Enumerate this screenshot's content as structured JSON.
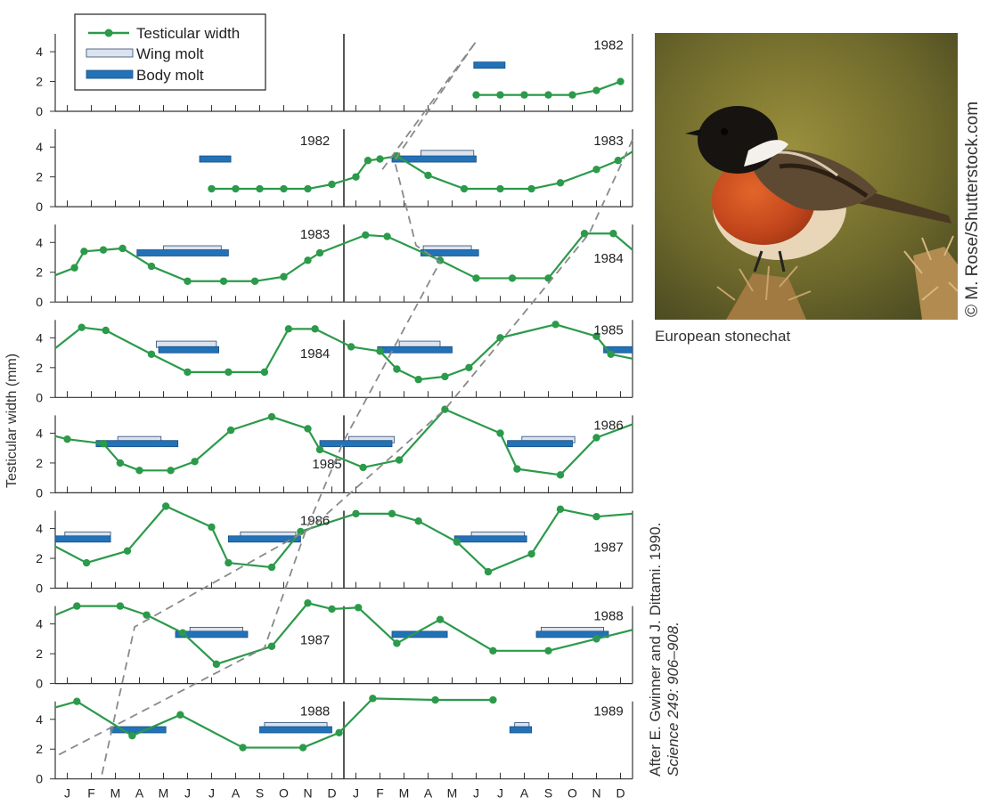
{
  "figure": {
    "ylabel": "Testicular width (mm)",
    "photo_caption": "European stonechat",
    "photo_credit": "© M. Rose/Shutterstock.com",
    "citation_line1": "After E. Gwinner and J. Dittami. 1990.",
    "citation_line2": "Science 249: 906–908."
  },
  "colors": {
    "testis_line": "#2b9a4a",
    "body_molt": "#2272b8",
    "wing_molt": "#dce3ee",
    "dashed": "#8a8a8a"
  },
  "chart_data": {
    "type": "line",
    "ylim": [
      0,
      5.2
    ],
    "yticks": [
      0,
      2,
      4
    ],
    "months": [
      "J",
      "F",
      "M",
      "A",
      "M",
      "J",
      "J",
      "A",
      "S",
      "O",
      "N",
      "D",
      "J",
      "F",
      "M",
      "A",
      "M",
      "J",
      "J",
      "A",
      "S",
      "O",
      "N",
      "D"
    ],
    "legend": {
      "testis": "Testicular width",
      "wing": "Wing molt",
      "body": "Body molt"
    },
    "rows": [
      {
        "year_labels": [
          {
            "text": "1982",
            "m": 23.0,
            "y": 4.5
          }
        ],
        "testis": [
          [
            17.5,
            1.1
          ],
          [
            18.5,
            1.1
          ],
          [
            19.5,
            1.1
          ],
          [
            20.5,
            1.1
          ],
          [
            21.5,
            1.1
          ],
          [
            22.5,
            1.4
          ],
          [
            23.5,
            2.0
          ]
        ],
        "body_molt": [
          [
            17.4,
            18.7,
            3.1
          ]
        ],
        "wing_molt": []
      },
      {
        "year_labels": [
          {
            "text": "1982",
            "m": 10.8,
            "y": 4.5
          },
          {
            "text": "1983",
            "m": 23.0,
            "y": 4.5
          }
        ],
        "testis": [
          [
            6.5,
            1.2
          ],
          [
            7.5,
            1.2
          ],
          [
            8.5,
            1.2
          ],
          [
            9.5,
            1.2
          ],
          [
            10.5,
            1.2
          ],
          [
            11.5,
            1.5
          ],
          [
            12.5,
            2.0
          ],
          [
            13.0,
            3.1
          ],
          [
            13.5,
            3.2
          ],
          [
            14.2,
            3.4
          ],
          [
            15.5,
            2.1
          ],
          [
            17.0,
            1.2
          ],
          [
            18.5,
            1.2
          ],
          [
            19.8,
            1.2
          ],
          [
            21.0,
            1.6
          ],
          [
            22.5,
            2.5
          ],
          [
            23.4,
            3.1
          ],
          [
            24.0,
            3.7
          ]
        ],
        "body_molt": [
          [
            6.0,
            7.3,
            3.2
          ],
          [
            14.0,
            17.5,
            3.2
          ]
        ],
        "wing_molt": [
          [
            15.2,
            17.4
          ]
        ]
      },
      {
        "year_labels": [
          {
            "text": "1983",
            "m": 10.8,
            "y": 4.6
          },
          {
            "text": "1984",
            "m": 23.0,
            "y": 3.0
          }
        ],
        "testis": [
          [
            0.0,
            1.8
          ],
          [
            0.8,
            2.3
          ],
          [
            1.2,
            3.4
          ],
          [
            2.0,
            3.5
          ],
          [
            2.8,
            3.6
          ],
          [
            4.0,
            2.4
          ],
          [
            5.5,
            1.4
          ],
          [
            7.0,
            1.4
          ],
          [
            8.3,
            1.4
          ],
          [
            9.5,
            1.7
          ],
          [
            10.5,
            2.8
          ],
          [
            11.0,
            3.3
          ],
          [
            12.9,
            4.5
          ],
          [
            13.8,
            4.4
          ],
          [
            16.0,
            2.8
          ],
          [
            17.5,
            1.6
          ],
          [
            19.0,
            1.6
          ],
          [
            20.5,
            1.6
          ],
          [
            22.0,
            4.6
          ],
          [
            23.2,
            4.6
          ],
          [
            24.0,
            3.5
          ]
        ],
        "body_molt": [
          [
            3.4,
            7.2,
            3.3
          ],
          [
            15.2,
            17.6,
            3.3
          ]
        ],
        "wing_molt": [
          [
            4.5,
            6.9
          ],
          [
            15.3,
            17.3
          ]
        ]
      },
      {
        "year_labels": [
          {
            "text": "1984",
            "m": 10.8,
            "y": 3.0
          },
          {
            "text": "1985",
            "m": 23.0,
            "y": 4.6
          }
        ],
        "testis": [
          [
            0.0,
            3.3
          ],
          [
            1.1,
            4.7
          ],
          [
            2.1,
            4.5
          ],
          [
            4.0,
            2.9
          ],
          [
            5.5,
            1.7
          ],
          [
            7.2,
            1.7
          ],
          [
            8.7,
            1.7
          ],
          [
            9.7,
            4.6
          ],
          [
            10.8,
            4.6
          ],
          [
            12.3,
            3.4
          ],
          [
            13.5,
            3.1
          ],
          [
            14.2,
            1.9
          ],
          [
            15.1,
            1.2
          ],
          [
            16.2,
            1.4
          ],
          [
            17.2,
            2.0
          ],
          [
            18.5,
            4.0
          ],
          [
            20.8,
            4.9
          ],
          [
            22.5,
            4.1
          ],
          [
            23.1,
            2.9
          ],
          [
            24.0,
            2.6
          ]
        ],
        "body_molt": [
          [
            4.3,
            6.8,
            3.2
          ],
          [
            13.4,
            16.5,
            3.2
          ],
          [
            22.8,
            24.0,
            3.2
          ]
        ],
        "wing_molt": [
          [
            4.2,
            6.7
          ],
          [
            14.3,
            16.0
          ]
        ]
      },
      {
        "year_labels": [
          {
            "text": "1985",
            "m": 11.3,
            "y": 2.0
          },
          {
            "text": "1986",
            "m": 23.0,
            "y": 4.6
          }
        ],
        "testis": [
          [
            0.0,
            3.8
          ],
          [
            0.5,
            3.6
          ],
          [
            2.0,
            3.3
          ],
          [
            2.7,
            2.0
          ],
          [
            3.5,
            1.5
          ],
          [
            4.8,
            1.5
          ],
          [
            5.8,
            2.1
          ],
          [
            7.3,
            4.2
          ],
          [
            9.0,
            5.1
          ],
          [
            10.5,
            4.3
          ],
          [
            11.0,
            2.9
          ],
          [
            12.8,
            1.7
          ],
          [
            14.3,
            2.2
          ],
          [
            16.2,
            5.6
          ],
          [
            18.5,
            4.0
          ],
          [
            19.2,
            1.6
          ],
          [
            21.0,
            1.2
          ],
          [
            22.5,
            3.7
          ],
          [
            24.0,
            4.6
          ]
        ],
        "body_molt": [
          [
            1.7,
            5.1,
            3.3
          ],
          [
            11.0,
            14.0,
            3.3
          ],
          [
            18.8,
            21.5,
            3.3
          ]
        ],
        "wing_molt": [
          [
            2.6,
            4.4
          ],
          [
            12.2,
            14.1
          ],
          [
            19.4,
            21.6
          ]
        ]
      },
      {
        "year_labels": [
          {
            "text": "1986",
            "m": 10.8,
            "y": 4.6
          },
          {
            "text": "1987",
            "m": 23.0,
            "y": 2.8
          }
        ],
        "testis": [
          [
            0.0,
            2.8
          ],
          [
            1.3,
            1.7
          ],
          [
            3.0,
            2.5
          ],
          [
            4.6,
            5.5
          ],
          [
            6.5,
            4.1
          ],
          [
            7.2,
            1.7
          ],
          [
            9.0,
            1.4
          ],
          [
            10.2,
            3.8
          ],
          [
            12.5,
            5.0
          ],
          [
            14.0,
            5.0
          ],
          [
            15.1,
            4.5
          ],
          [
            16.7,
            3.1
          ],
          [
            18.0,
            1.1
          ],
          [
            19.8,
            2.3
          ],
          [
            21.0,
            5.3
          ],
          [
            22.5,
            4.8
          ],
          [
            24.0,
            5.0
          ]
        ],
        "body_molt": [
          [
            0.0,
            2.3,
            3.3
          ],
          [
            7.2,
            10.2,
            3.3
          ],
          [
            16.6,
            19.6,
            3.3
          ]
        ],
        "wing_molt": [
          [
            0.4,
            2.3
          ],
          [
            7.7,
            10.0
          ],
          [
            17.3,
            19.5
          ]
        ]
      },
      {
        "year_labels": [
          {
            "text": "1987",
            "m": 10.8,
            "y": 3.0
          },
          {
            "text": "1988",
            "m": 23.0,
            "y": 4.6
          }
        ],
        "testis": [
          [
            0.0,
            4.6
          ],
          [
            0.9,
            5.2
          ],
          [
            2.7,
            5.2
          ],
          [
            3.8,
            4.6
          ],
          [
            5.3,
            3.4
          ],
          [
            6.7,
            1.3
          ],
          [
            9.0,
            2.5
          ],
          [
            10.5,
            5.4
          ],
          [
            11.5,
            5.0
          ],
          [
            12.6,
            5.1
          ],
          [
            14.2,
            2.7
          ],
          [
            16.0,
            4.3
          ],
          [
            18.2,
            2.2
          ],
          [
            20.5,
            2.2
          ],
          [
            22.5,
            3.0
          ],
          [
            24.0,
            3.6
          ]
        ],
        "body_molt": [
          [
            5.0,
            8.0,
            3.3
          ],
          [
            14.0,
            16.3,
            3.3
          ],
          [
            20.0,
            23.0,
            3.3
          ]
        ],
        "wing_molt": [
          [
            5.6,
            7.8
          ],
          [
            20.2,
            22.8
          ]
        ]
      },
      {
        "year_labels": [
          {
            "text": "1988",
            "m": 10.8,
            "y": 4.6
          },
          {
            "text": "1989",
            "m": 23.0,
            "y": 4.6
          }
        ],
        "testis": [
          [
            0.0,
            4.8
          ],
          [
            0.9,
            5.2
          ],
          [
            3.2,
            2.9
          ],
          [
            5.2,
            4.3
          ],
          [
            7.8,
            2.1
          ],
          [
            10.3,
            2.1
          ],
          [
            11.8,
            3.1
          ],
          [
            13.2,
            5.4
          ],
          [
            15.8,
            5.3
          ],
          [
            18.2,
            5.3
          ]
        ],
        "body_molt": [
          [
            2.3,
            4.6,
            3.3
          ],
          [
            8.5,
            11.5,
            3.3
          ],
          [
            18.9,
            19.8,
            3.3
          ]
        ],
        "wing_molt": [
          [
            8.7,
            11.3
          ],
          [
            19.1,
            19.7
          ]
        ]
      }
    ],
    "dashed_line_1": [
      [
        13.6,
        2.5,
        "r1"
      ],
      [
        17.5,
        4.7,
        "r0"
      ],
      [
        14.1,
        3.1,
        "r1"
      ],
      [
        15.0,
        3.8,
        "r2"
      ],
      [
        16.0,
        2.7,
        "r2"
      ],
      [
        12.0,
        3.5,
        "r4"
      ],
      [
        10.4,
        3.8,
        "r5"
      ],
      [
        8.7,
        2.4,
        "r6"
      ],
      [
        0.0,
        1.5,
        "r7"
      ]
    ],
    "dashed_line_2": [
      [
        24.0,
        4.5,
        "r1"
      ],
      [
        22.2,
        4.6,
        "r2"
      ],
      [
        16.2,
        5.6,
        "r4"
      ],
      [
        10.6,
        4.0,
        "r5"
      ],
      [
        3.3,
        3.8,
        "r6"
      ],
      [
        1.9,
        0.0,
        "r7"
      ]
    ]
  }
}
